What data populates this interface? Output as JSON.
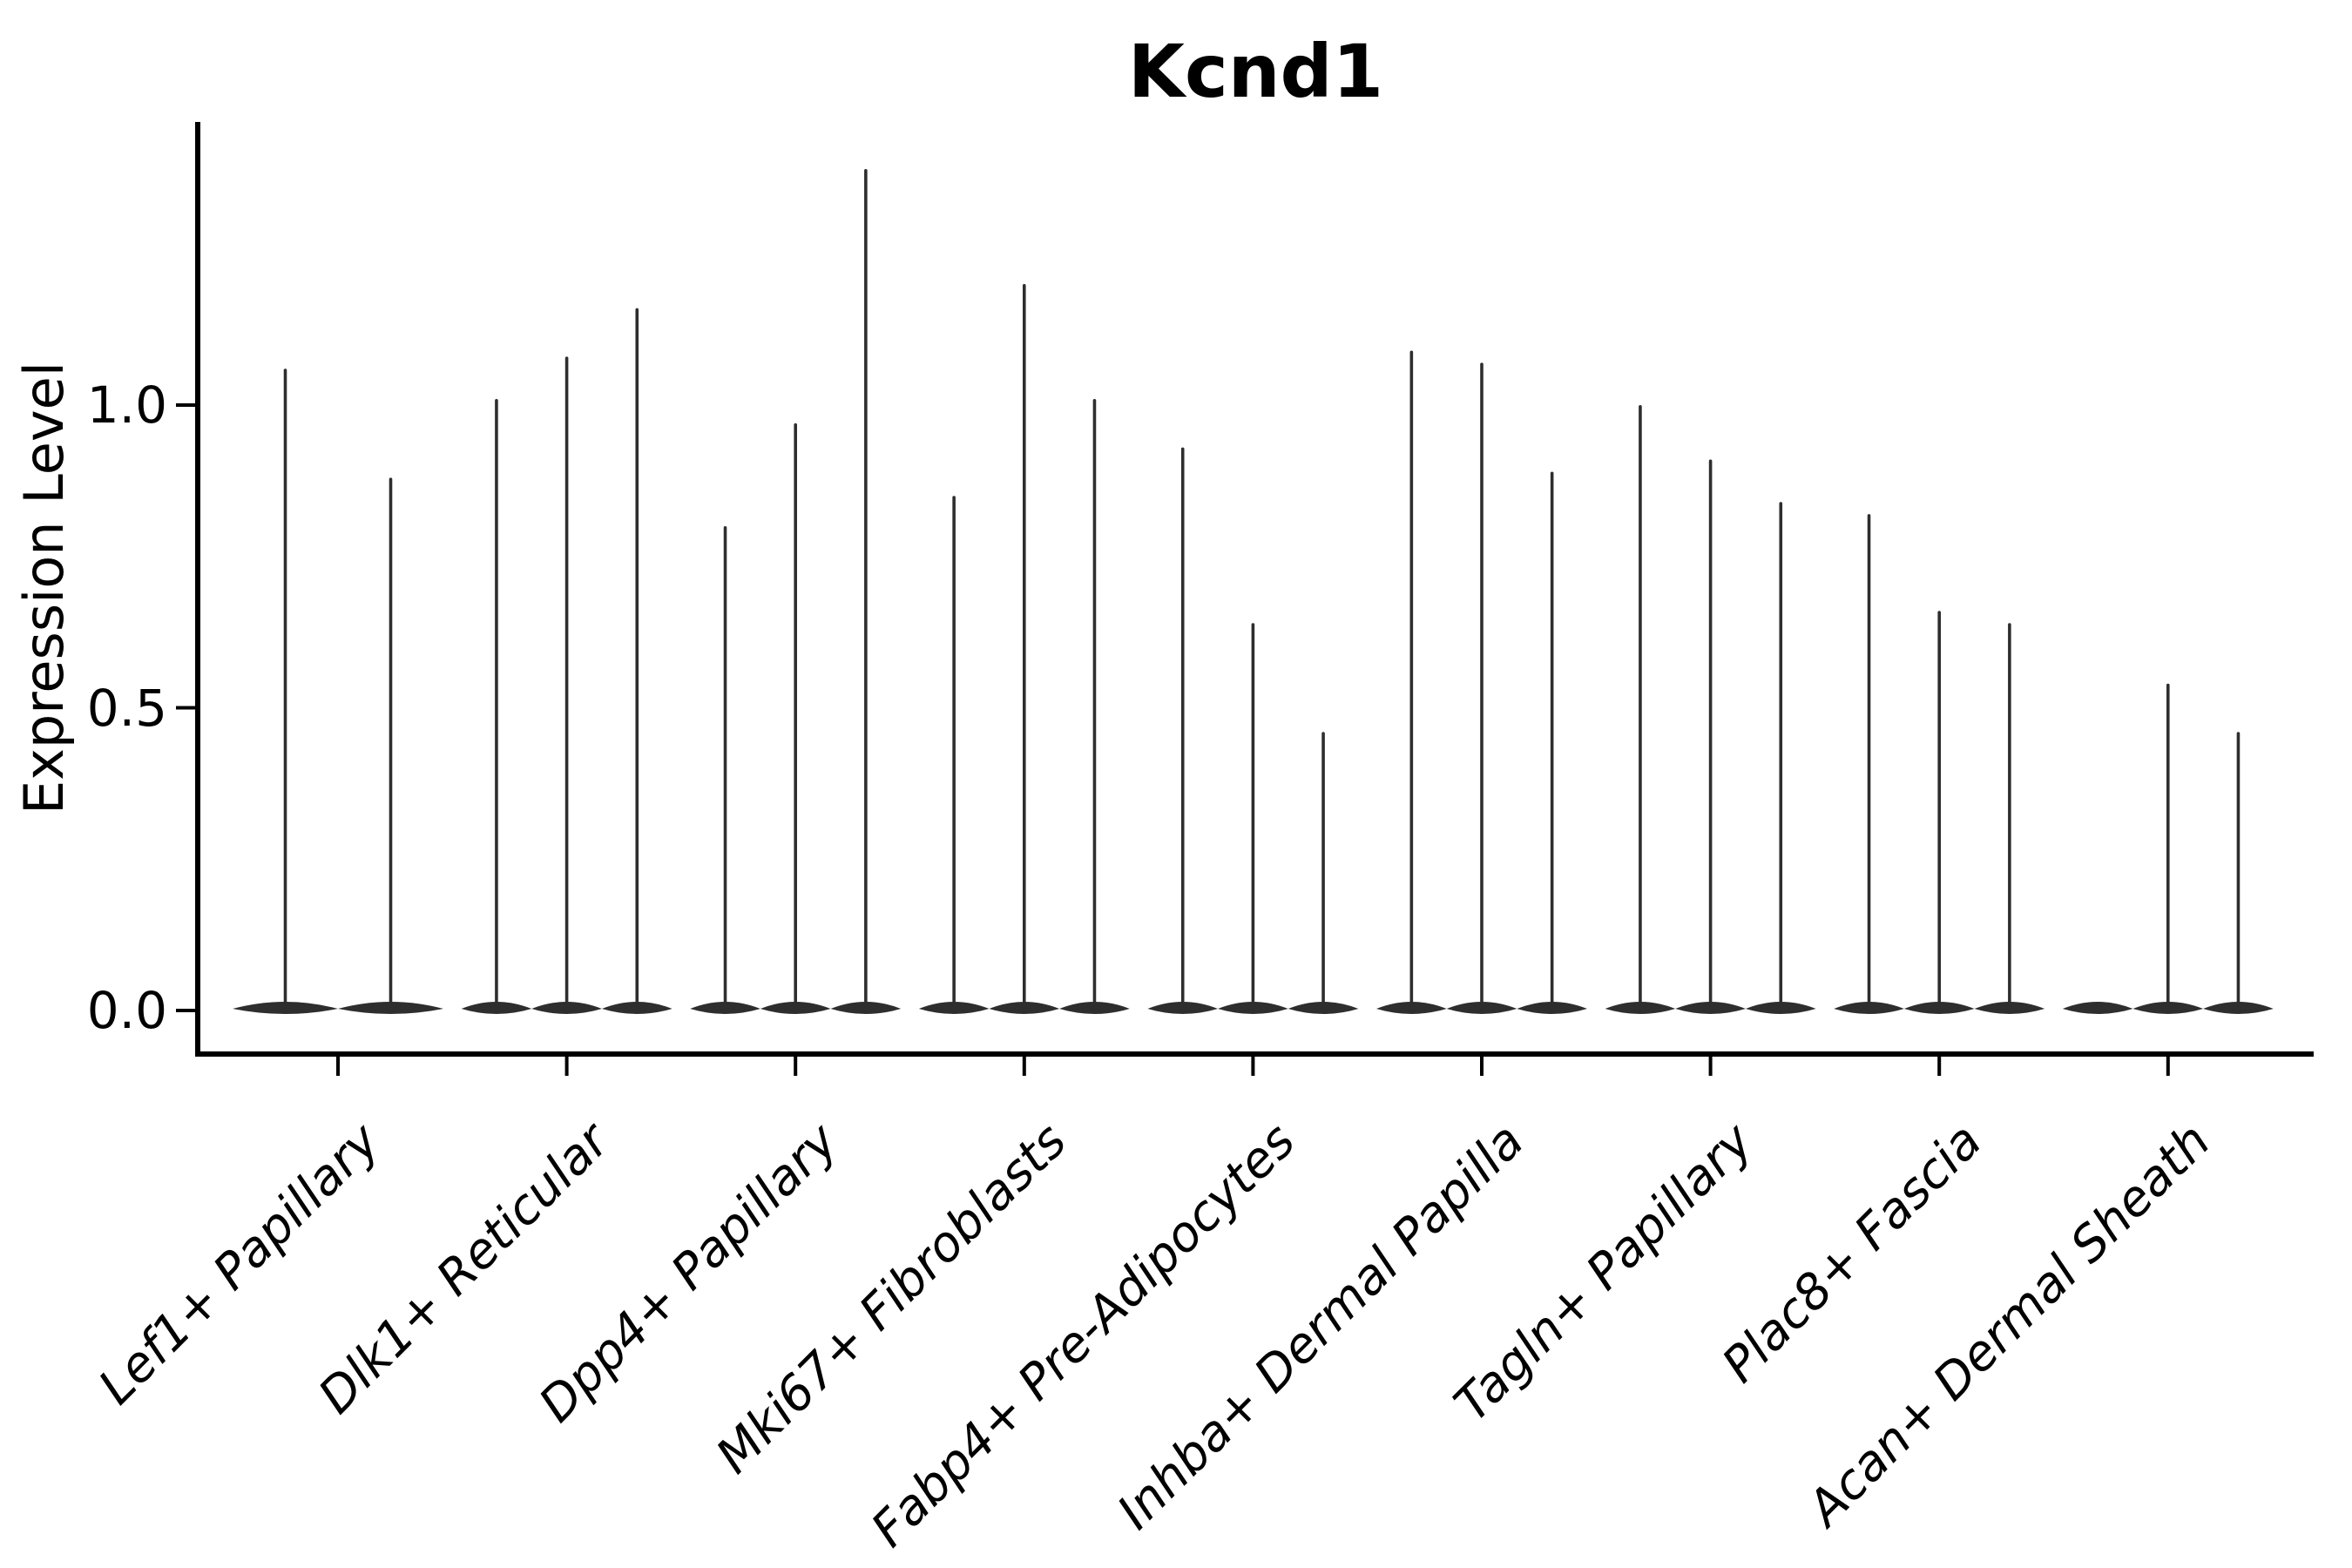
{
  "figure": {
    "background": "#ffffff"
  },
  "chart_data": {
    "type": "violin",
    "title": "Kcnd1",
    "ylabel": "Expression Level",
    "xlabel": "",
    "ylim": [
      -0.07,
      1.47
    ],
    "yticks": [
      0.0,
      0.5,
      1.0
    ],
    "ytick_labels": [
      "0.0",
      "0.5",
      "1.0"
    ],
    "grid": false,
    "legend_position": "none",
    "violin_color": "#2e2e2e",
    "axis_color": "#000000",
    "categories": [
      "Lef1+ Papillary",
      "Dlk1+ Reticular",
      "Dpp4+ Papillary",
      "Mki67+ Fibroblasts",
      "Fabp4+ Pre-Adipocytes",
      "Inhba+ Dermal Papilla",
      "Tagln+ Papillary",
      "Plac8+ Fascia",
      "Acan+ Dermal Sheath"
    ],
    "violin_shape": "each violin has its bulk of density flattened at expression 0 with a single thin spike rising to its maximum expression value; a maximum of 0 means the violin is entirely flat at 0 (no spike)",
    "groups": [
      {
        "category": "Lef1+ Papillary",
        "violin_maxima": [
          1.06,
          0.88
        ]
      },
      {
        "category": "Dlk1+ Reticular",
        "violin_maxima": [
          1.01,
          1.08,
          1.16
        ]
      },
      {
        "category": "Dpp4+ Papillary",
        "violin_maxima": [
          0.8,
          0.97,
          1.39
        ]
      },
      {
        "category": "Mki67+ Fibroblasts",
        "violin_maxima": [
          0.85,
          1.2,
          1.01
        ]
      },
      {
        "category": "Fabp4+ Pre-Adipocytes",
        "violin_maxima": [
          0.93,
          0.64,
          0.46
        ]
      },
      {
        "category": "Inhba+ Dermal Papilla",
        "violin_maxima": [
          1.09,
          1.07,
          0.89
        ]
      },
      {
        "category": "Tagln+ Papillary",
        "violin_maxima": [
          1.0,
          0.91,
          0.84
        ]
      },
      {
        "category": "Plac8+ Fascia",
        "violin_maxima": [
          0.82,
          0.66,
          0.64
        ]
      },
      {
        "category": "Acan+ Dermal Sheath",
        "violin_maxima": [
          0,
          0.54,
          0.46
        ]
      }
    ]
  }
}
